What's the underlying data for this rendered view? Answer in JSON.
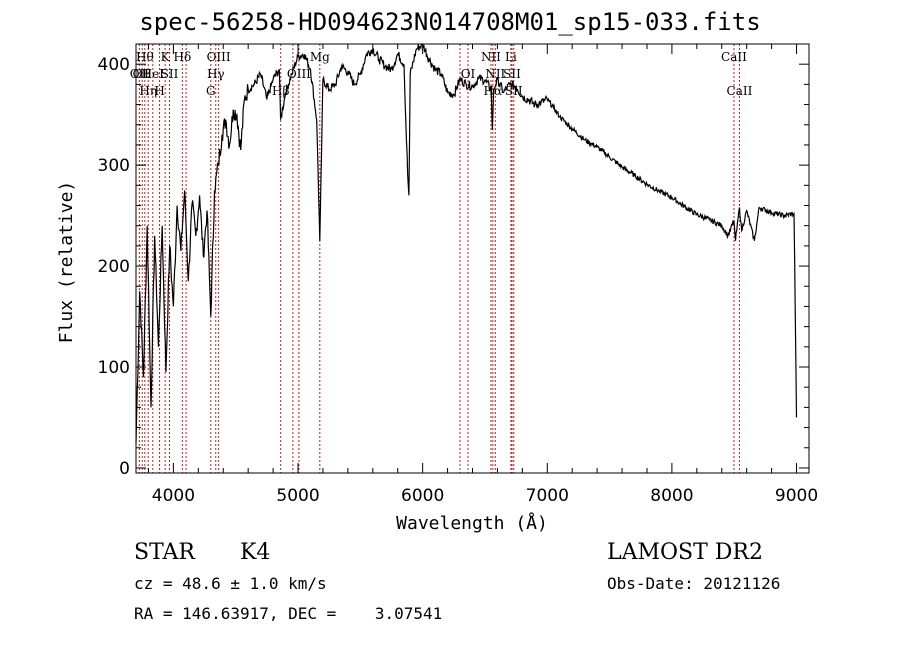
{
  "chart_data": {
    "type": "line",
    "title": "spec-56258-HD094623N014708M01_sp15-033.fits",
    "xlabel": "Wavelength (Å)",
    "ylabel": "Flux (relative)",
    "xlim": [
      3700,
      9100
    ],
    "ylim": [
      -5,
      420
    ],
    "xticks": [
      4000,
      5000,
      6000,
      7000,
      8000,
      9000
    ],
    "yticks": [
      0,
      100,
      200,
      300,
      400
    ],
    "grid": false,
    "line_color": "#000000",
    "marker_color": "#b22222",
    "series": [
      {
        "x": [
          3700,
          3730,
          3760,
          3790,
          3820,
          3850,
          3880,
          3910,
          3940,
          3970,
          4000,
          4030,
          4060,
          4090,
          4120,
          4150,
          4180,
          4210,
          4240,
          4270,
          4300,
          4330,
          4360,
          4390,
          4420,
          4450,
          4480,
          4510,
          4540,
          4570,
          4600,
          4650,
          4700,
          4750,
          4800,
          4850,
          4860,
          4900,
          4950,
          5000,
          5050,
          5100,
          5150,
          5175,
          5200,
          5250,
          5300,
          5350,
          5400,
          5450,
          5500,
          5550,
          5600,
          5650,
          5700,
          5750,
          5800,
          5850,
          5880,
          5890,
          5900,
          5950,
          6000,
          6050,
          6100,
          6150,
          6200,
          6250,
          6300,
          6350,
          6400,
          6450,
          6500,
          6550,
          6560,
          6570,
          6600,
          6650,
          6700,
          6750,
          6800,
          6850,
          6900,
          6950,
          7000,
          7050,
          7100,
          7200,
          7300,
          7400,
          7500,
          7600,
          7700,
          7800,
          7900,
          8000,
          8100,
          8200,
          8300,
          8400,
          8450,
          8498,
          8510,
          8542,
          8560,
          8600,
          8662,
          8700,
          8800,
          8900,
          8980,
          9000
        ],
        "y": [
          25,
          175,
          90,
          240,
          60,
          230,
          120,
          240,
          95,
          220,
          160,
          260,
          215,
          275,
          185,
          262,
          230,
          270,
          210,
          255,
          150,
          275,
          300,
          330,
          345,
          320,
          355,
          350,
          315,
          365,
          375,
          380,
          390,
          365,
          385,
          395,
          345,
          372,
          390,
          408,
          410,
          395,
          345,
          225,
          385,
          375,
          380,
          398,
          392,
          380,
          390,
          410,
          415,
          405,
          398,
          395,
          410,
          400,
          290,
          270,
          390,
          415,
          420,
          405,
          395,
          390,
          372,
          370,
          385,
          380,
          378,
          386,
          384,
          375,
          335,
          375,
          385,
          372,
          380,
          378,
          368,
          365,
          360,
          362,
          365,
          357,
          348,
          336,
          325,
          318,
          308,
          298,
          290,
          281,
          274,
          268,
          259,
          251,
          246,
          240,
          230,
          245,
          225,
          258,
          235,
          255,
          225,
          258,
          253,
          250,
          252,
          50
        ]
      }
    ],
    "line_markers": [
      {
        "x": 3727,
        "label": "OII",
        "row": 2
      },
      {
        "x": 3750,
        "label": "OII",
        "row": 2
      },
      {
        "x": 3771,
        "label": "Hθ",
        "row": 1
      },
      {
        "x": 3798,
        "label": "Hη",
        "row": 3
      },
      {
        "x": 3835,
        "label": "HeI",
        "row": 2
      },
      {
        "x": 3889,
        "label": "H",
        "row": 3
      },
      {
        "x": 3934,
        "label": "K",
        "row": 1
      },
      {
        "x": 3969,
        "label": "SII",
        "row": 2
      },
      {
        "x": 4072,
        "label": "Hδ",
        "row": 1
      },
      {
        "x": 4102,
        "label": "",
        "row": 0
      },
      {
        "x": 4300,
        "label": "G",
        "row": 3
      },
      {
        "x": 4340,
        "label": "Hγ",
        "row": 2
      },
      {
        "x": 4363,
        "label": "OIII",
        "row": 1
      },
      {
        "x": 4861,
        "label": "Hβ",
        "row": 3
      },
      {
        "x": 4959,
        "label": "",
        "row": 0
      },
      {
        "x": 5007,
        "label": "OIII",
        "row": 2
      },
      {
        "x": 5175,
        "label": "Mg",
        "row": 1
      },
      {
        "x": 6300,
        "label": "",
        "row": 0
      },
      {
        "x": 6364,
        "label": "OI",
        "row": 2
      },
      {
        "x": 6548,
        "label": "NII",
        "row": 1
      },
      {
        "x": 6563,
        "label": "Hα",
        "row": 3
      },
      {
        "x": 6583,
        "label": "NII",
        "row": 2
      },
      {
        "x": 6708,
        "label": "Li",
        "row": 1
      },
      {
        "x": 6717,
        "label": "SII",
        "row": 2
      },
      {
        "x": 6731,
        "label": "SII",
        "row": 3
      },
      {
        "x": 8498,
        "label": "CaII",
        "row": 1
      },
      {
        "x": 8542,
        "label": "CaII",
        "row": 3
      }
    ]
  },
  "info": {
    "object_class": "STAR",
    "subclass": "K4",
    "survey": "LAMOST DR2",
    "redshift": "cz = 48.6 ± 1.0 km/s",
    "obs_date": "Obs-Date: 20121126",
    "coords": "RA = 146.63917, DEC =    3.07541"
  }
}
